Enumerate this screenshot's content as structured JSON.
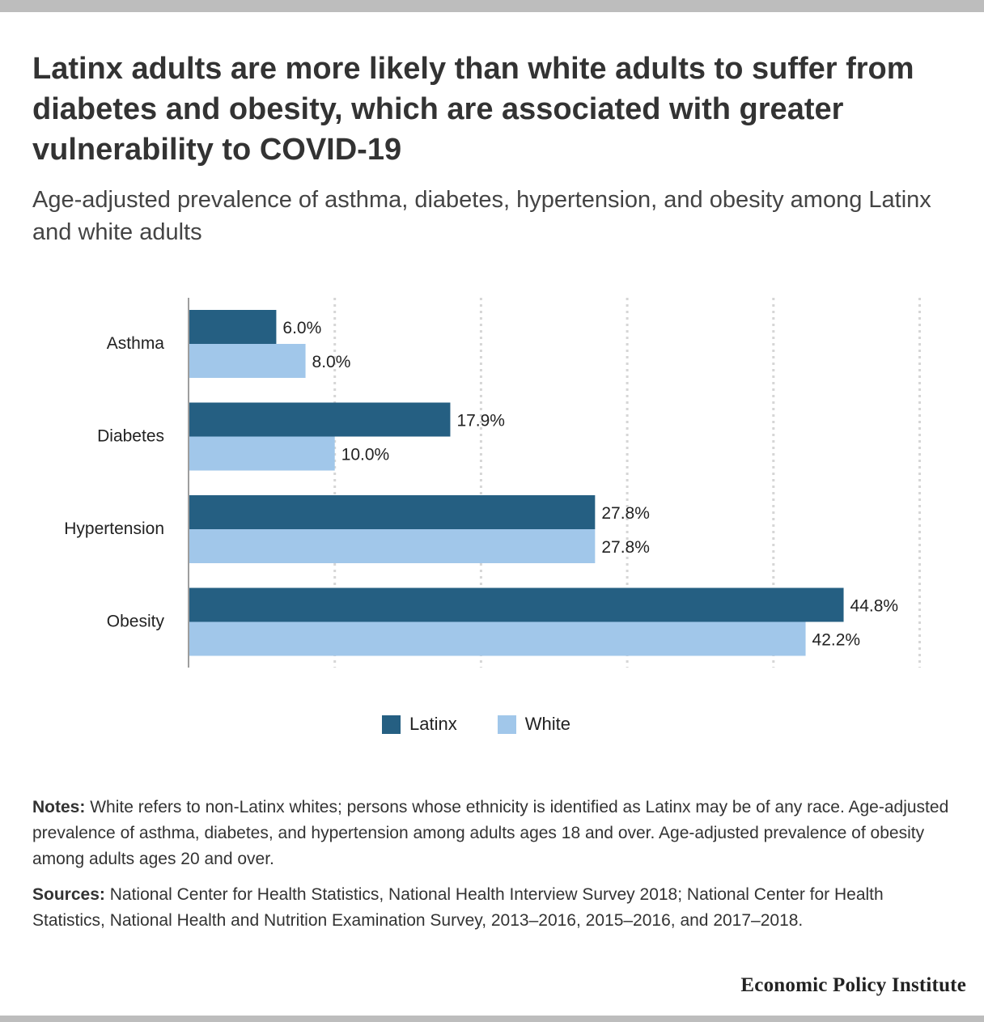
{
  "header": {
    "title": "Latinx adults are more likely than white adults to suffer from diabetes and obesity, which are associated with greater vulnerability to COVID-19",
    "subtitle": "Age-adjusted prevalence of asthma, diabetes, hypertension, and obesity among Latinx and white adults"
  },
  "chart_data": {
    "type": "bar",
    "orientation": "horizontal",
    "categories": [
      "Asthma",
      "Diabetes",
      "Hypertension",
      "Obesity"
    ],
    "series": [
      {
        "name": "Latinx",
        "values": [
          6.0,
          17.9,
          27.8,
          44.8
        ],
        "labels": [
          "6.0%",
          "17.9%",
          "27.8%",
          "44.8%"
        ],
        "color": "#255f82"
      },
      {
        "name": "White",
        "values": [
          8.0,
          10.0,
          27.8,
          42.2
        ],
        "labels": [
          "8.0%",
          "10.0%",
          "27.8%",
          "42.2%"
        ],
        "color": "#a1c7ea"
      }
    ],
    "xlim": [
      0,
      50
    ],
    "grid": true,
    "legend_position": "bottom"
  },
  "legend": {
    "items": [
      {
        "label": "Latinx",
        "color": "#255f82"
      },
      {
        "label": "White",
        "color": "#a1c7ea"
      }
    ]
  },
  "notes": {
    "label": "Notes:",
    "text": "White refers to non-Latinx whites; persons whose ethnicity is identified as Latinx may be of any race. Age-adjusted prevalence of asthma, diabetes, and hypertension among adults ages 18 and over. Age-adjusted prevalence of obesity among adults ages 20 and over."
  },
  "sources": {
    "label": "Sources:",
    "text": "National Center for Health Statistics, National Health Interview Survey 2018; National Center for Health Statistics, National Health and Nutrition Examination Survey, 2013–2016, 2015–2016, and 2017–2018."
  },
  "footer": {
    "brand": "Economic Policy Institute"
  }
}
